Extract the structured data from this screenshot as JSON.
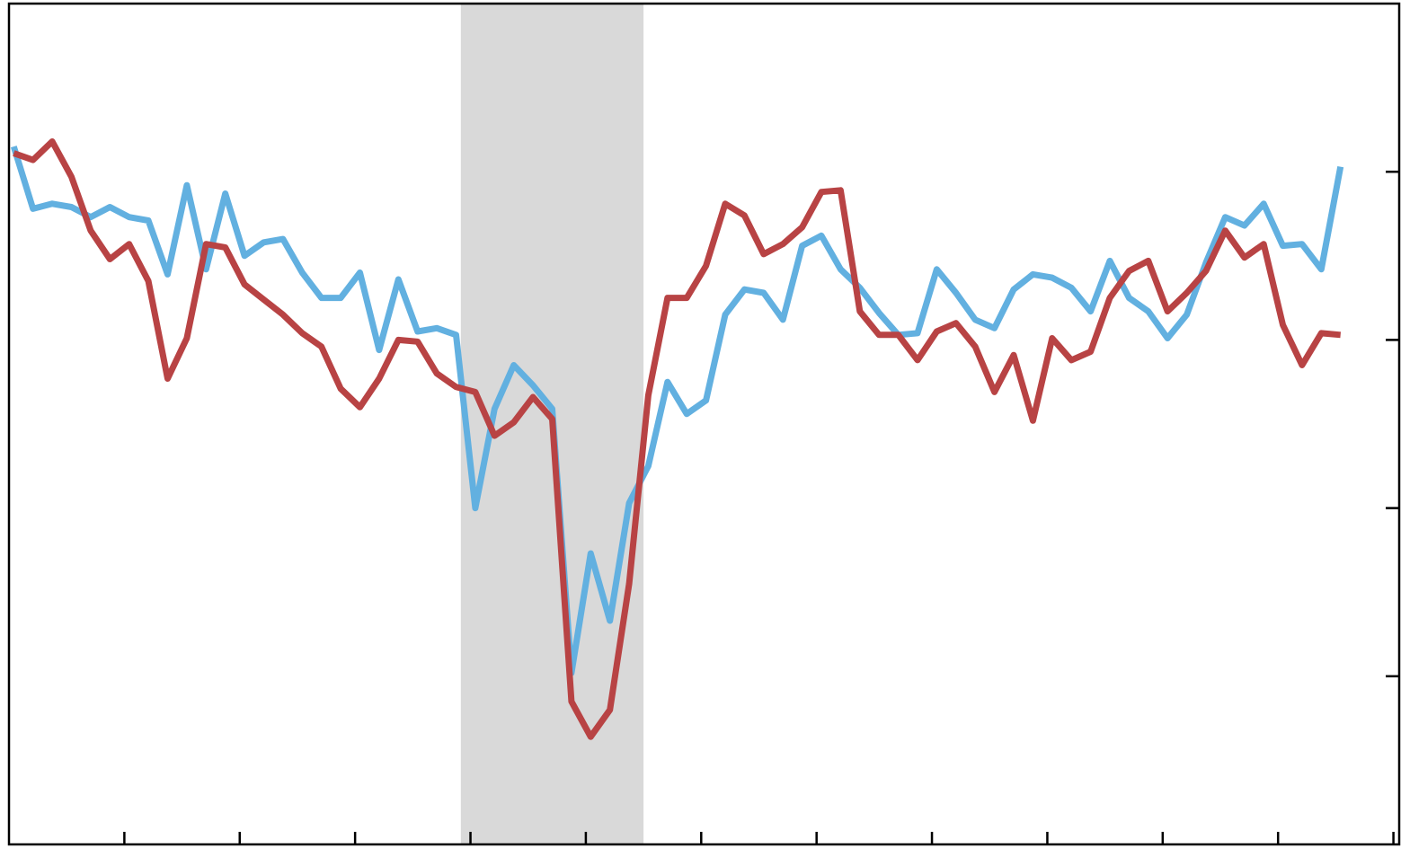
{
  "chart_data": {
    "type": "line",
    "x": [
      0.5,
      2.5,
      4.5,
      6.5,
      8.5,
      10.5,
      12.5,
      14.5,
      16.5,
      18.5,
      20.5,
      22.5,
      24.5,
      26.5,
      28.5,
      30.5,
      32.5,
      34.5,
      36.5,
      38.5,
      40.5,
      42.5,
      44.5,
      46.5,
      48.5,
      50.5,
      52.5,
      54.5,
      56.5,
      58.5,
      60.5,
      62.5,
      64.5,
      66.5,
      68.5,
      70.5,
      72.5,
      74.5,
      76.5,
      78.5,
      80.5,
      82.5,
      84.5,
      86.5,
      88.5,
      90.5,
      92.5,
      94.5,
      96.5,
      98.5,
      100.5,
      102.5,
      104.5,
      106.5,
      108.5,
      110.5,
      112.5,
      114.5,
      116.5,
      118.5,
      120.5,
      122.5,
      124.5,
      126.5,
      128.5,
      130.5,
      132.5,
      134.5,
      136.5,
      138.5
    ],
    "series": [
      {
        "color": "#62b0e0",
        "values": [
          4.15,
          3.78,
          3.81,
          3.79,
          3.73,
          3.79,
          3.73,
          3.71,
          3.39,
          3.92,
          3.42,
          3.87,
          3.5,
          3.58,
          3.6,
          3.4,
          3.25,
          3.25,
          3.4,
          2.94,
          3.36,
          3.05,
          3.07,
          3.03,
          2.0,
          2.59,
          2.85,
          2.73,
          2.59,
          1.02,
          1.73,
          1.33,
          2.03,
          2.25,
          2.75,
          2.56,
          2.64,
          3.15,
          3.3,
          3.28,
          3.12,
          3.56,
          3.62,
          3.42,
          3.31,
          3.16,
          3.03,
          3.04,
          3.42,
          3.28,
          3.12,
          3.07,
          3.3,
          3.39,
          3.37,
          3.31,
          3.17,
          3.47,
          3.25,
          3.17,
          3.01,
          3.15,
          3.46,
          3.73,
          3.68,
          3.81,
          3.56,
          3.57,
          3.42,
          4.03
        ]
      },
      {
        "color": "#b84344",
        "values": [
          4.11,
          4.07,
          4.18,
          3.97,
          3.65,
          3.48,
          3.57,
          3.35,
          2.77,
          3.01,
          3.57,
          3.55,
          3.33,
          3.24,
          3.15,
          3.04,
          2.96,
          2.71,
          2.6,
          2.77,
          3.0,
          2.99,
          2.8,
          2.72,
          2.69,
          2.43,
          2.51,
          2.66,
          2.53,
          0.85,
          0.64,
          0.8,
          1.55,
          2.67,
          3.25,
          3.25,
          3.44,
          3.81,
          3.74,
          3.51,
          3.57,
          3.67,
          3.88,
          3.89,
          3.17,
          3.03,
          3.03,
          2.88,
          3.05,
          3.1,
          2.96,
          2.69,
          2.91,
          2.52,
          3.01,
          2.88,
          2.93,
          3.25,
          3.41,
          3.47,
          3.17,
          3.28,
          3.41,
          3.65,
          3.49,
          3.57,
          3.09,
          2.85,
          3.04,
          3.03
        ]
      }
    ],
    "xlim": [
      0,
      144.6
    ],
    "xticks": [
      12,
      24,
      36,
      48,
      60,
      72,
      84,
      96,
      108,
      120,
      132,
      144
    ],
    "ylim": [
      0,
      5
    ],
    "yticks": [
      1,
      2,
      3,
      4
    ],
    "shaded_ranges": [
      [
        47,
        66
      ]
    ],
    "shade_color": "#d9d9d9"
  }
}
